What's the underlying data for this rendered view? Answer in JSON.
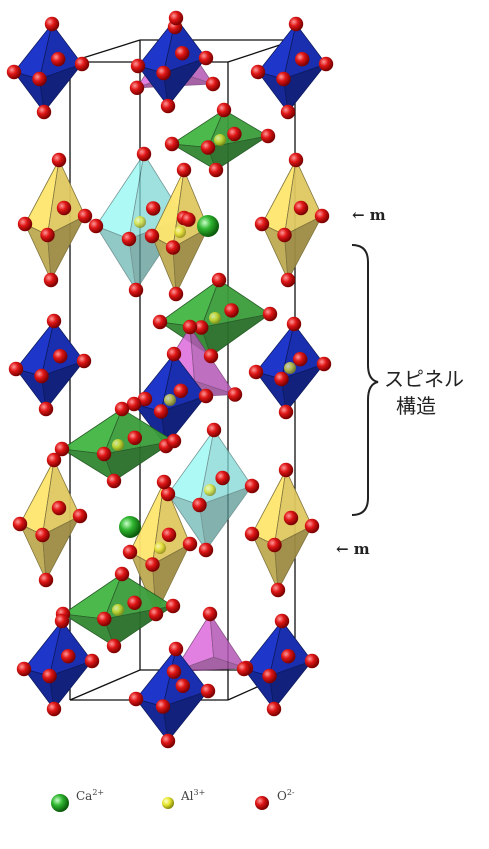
{
  "labels": {
    "m_top": "← m",
    "m_bottom": "← m",
    "brace_line1": "スピネル",
    "brace_line2": "構造"
  },
  "legend": [
    {
      "ion": "Ca",
      "charge": "2+",
      "color": "#2fb52f"
    },
    {
      "ion": "Al",
      "charge": "3+",
      "color": "#e6e62e"
    },
    {
      "ion": "O",
      "charge": "2-",
      "color": "#e01616"
    }
  ],
  "colors": {
    "blue_polyhedron": "#1a2fb0",
    "green_polyhedron": "#3a9e3a",
    "yellow_polyhedron": "#e0c860",
    "cyan_polyhedron": "#7fd8d4",
    "magenta_polyhedron": "#c860c8",
    "oxygen": "#e01616",
    "calcium": "#2fb52f",
    "aluminium": "#e6e62e"
  }
}
